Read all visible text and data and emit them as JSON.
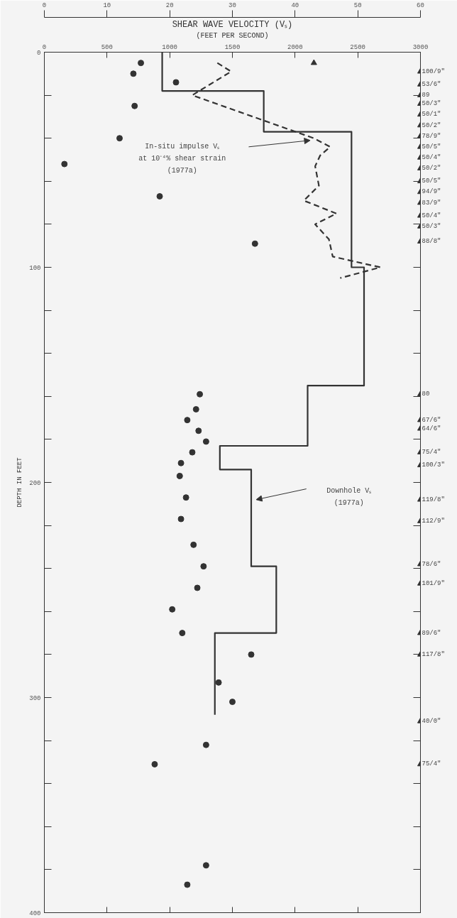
{
  "chart_data": {
    "type": "line",
    "title": "SHEAR WAVE VELOCITY (Vₛ)",
    "subtitle": "(FEET PER SECOND)",
    "ylabel": "DEPTH IN FEET",
    "xlim": [
      0,
      3000
    ],
    "xticks": [
      0,
      500,
      1000,
      1500,
      2000,
      2500,
      3000
    ],
    "x2lim": [
      0,
      60
    ],
    "x2ticks": [
      0,
      10,
      20,
      30,
      40,
      50,
      60
    ],
    "ylim": [
      400,
      0
    ],
    "yticks": [
      0,
      {
        "value": 20,
        "label": null
      },
      {
        "value": 40,
        "label": null
      },
      {
        "value": 60,
        "label": null
      },
      {
        "value": 80,
        "label": null
      },
      100,
      {
        "value": 120,
        "label": null
      },
      {
        "value": 140,
        "label": null
      },
      {
        "value": 160,
        "label": null
      },
      {
        "value": 180,
        "label": null
      },
      200,
      {
        "value": 220,
        "label": null
      },
      {
        "value": 240,
        "label": null
      },
      {
        "value": 260,
        "label": null
      },
      {
        "value": 280,
        "label": null
      },
      300,
      {
        "value": 320,
        "label": null
      },
      {
        "value": 340,
        "label": null
      },
      {
        "value": 360,
        "label": null
      },
      {
        "value": 380,
        "label": null
      },
      400
    ],
    "series": [
      {
        "line_style": "solid",
        "color": "#333333",
        "x": [
          940,
          940,
          1750,
          1750,
          2450,
          2450,
          2550,
          2550,
          2100,
          2100,
          1400,
          1400,
          1650,
          1650,
          1850,
          1850,
          1360,
          1360
        ],
        "values": [
          0,
          18,
          18,
          37,
          37,
          100,
          100,
          155,
          155,
          183,
          183,
          194,
          194,
          239,
          239,
          270,
          270,
          308
        ]
      },
      {
        "line_style": "dashed",
        "color": "#333333",
        "x": [
          1380,
          1490,
          1180,
          2150,
          2280,
          2200,
          2160,
          2190,
          2070,
          2330,
          2160,
          2270,
          2300,
          2680,
          2360
        ],
        "values": [
          5,
          9,
          20,
          40,
          44,
          48,
          53,
          62,
          69,
          75,
          80,
          87,
          95,
          100,
          105
        ]
      },
      {
        "type": "scatter",
        "marker": "circle",
        "color": "#333333",
        "x": [
          770,
          710,
          1050,
          720,
          600,
          160,
          920,
          1680,
          1240,
          1210,
          1140,
          1230,
          1290,
          1180,
          1090,
          1080,
          1130,
          1090,
          1190,
          1270,
          1220,
          1020,
          1100,
          1650,
          1390,
          1500,
          1290,
          880,
          1290,
          1140
        ],
        "values": [
          5,
          10,
          14,
          25,
          40,
          52,
          67,
          89,
          159,
          166,
          171,
          176,
          181,
          186,
          191,
          197,
          207,
          217,
          229,
          239,
          249,
          259,
          270,
          280,
          293,
          302,
          322,
          331,
          378,
          387
        ]
      },
      {
        "type": "scatter",
        "marker": "triangle",
        "axis": "x2",
        "color": "#333333",
        "x": [
          43,
          60,
          60,
          60,
          60,
          60,
          60,
          60,
          60,
          60,
          60,
          60,
          60,
          60,
          60,
          60,
          60,
          60,
          60,
          60,
          60,
          60,
          60,
          60,
          60,
          60,
          60,
          60,
          60,
          60
        ],
        "values": [
          5,
          9,
          15,
          20,
          24,
          29,
          34,
          39,
          44,
          49,
          54,
          60,
          65,
          70,
          76,
          81,
          88,
          159,
          171,
          175,
          186,
          192,
          208,
          218,
          238,
          247,
          270,
          280,
          311,
          331
        ]
      }
    ],
    "annotations": [
      "In-situ impulse Vₛ\nat 10⁻⁴% shear strain\n(1977a)",
      "Downhole Vₛ\n(1977a)",
      "100/9\"",
      "53/6\"",
      "89",
      "50/3\"",
      "50/1\"",
      "50/2\"",
      "78/9\"",
      "50/5\"",
      "50/4\"",
      "50/2\"",
      "50/5\"",
      "94/9\"",
      "83/9\"",
      "50/4\"",
      "50/3\"",
      "88/8\"",
      "80",
      "67/6\"",
      "64/6\"",
      "75/4\"",
      "100/3\"",
      "119/8\"",
      "112/9\"",
      "78/6\"",
      "101/9\"",
      "89/6\"",
      "117/8\"",
      "40/0\"",
      "75/4\""
    ]
  }
}
